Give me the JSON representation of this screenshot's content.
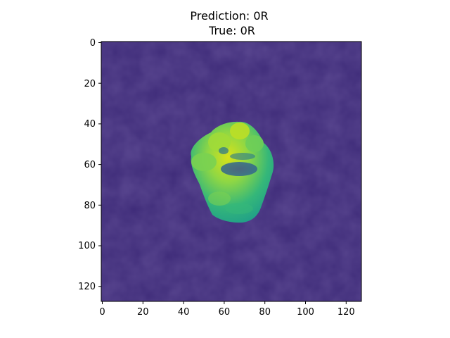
{
  "figure": {
    "title_line1": "Prediction: 0R",
    "title_line2": "True: 0R"
  },
  "image": {
    "description": "",
    "colormap": "viridis"
  },
  "axes": {
    "x_ticks": [
      "0",
      "20",
      "40",
      "60",
      "80",
      "100",
      "120"
    ],
    "y_ticks": [
      "0",
      "20",
      "40",
      "60",
      "80",
      "100",
      "120"
    ]
  }
}
